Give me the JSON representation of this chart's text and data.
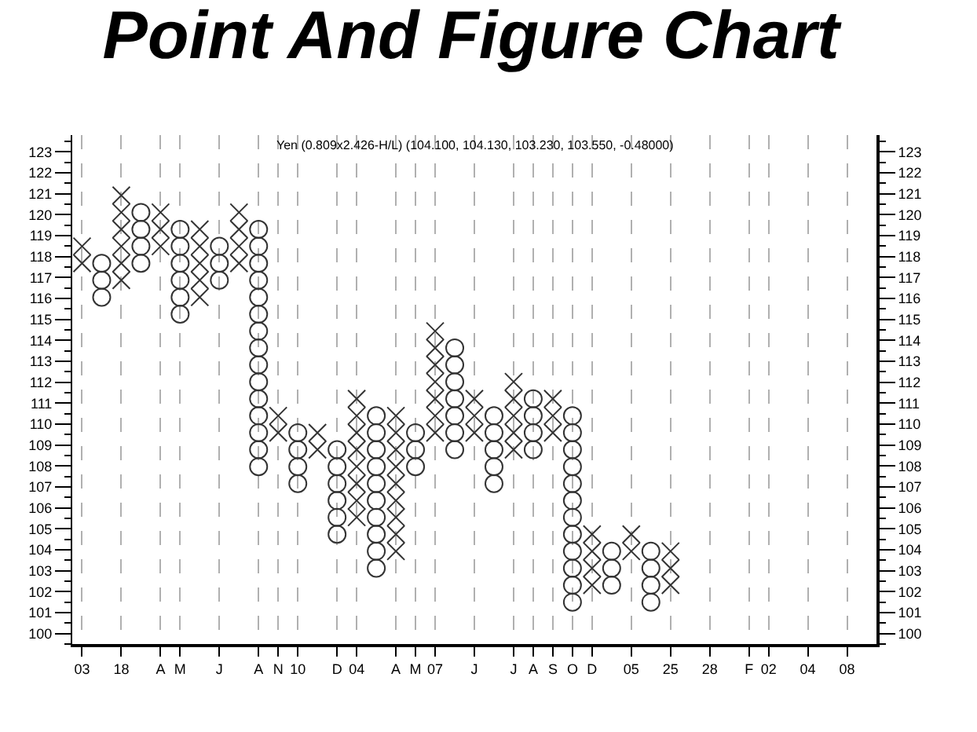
{
  "chart_data": {
    "type": "scatter",
    "title": "Point And Figure Chart",
    "annotations": [
      "Yen (0.809x2.426-H/L) (104.100, 104.130, 103.230, 103.550, -0.48000)"
    ],
    "categories": [
      "03",
      null,
      "18",
      null,
      "A",
      "M",
      null,
      "J",
      null,
      "A",
      "N",
      "10",
      null,
      "D",
      "04",
      null,
      "A",
      "M",
      "07",
      null,
      "J",
      null,
      "J",
      "A",
      "S",
      "O",
      "D",
      null,
      "05",
      null,
      "25",
      null,
      "28",
      null,
      "F",
      "02",
      null,
      "04",
      null,
      "08",
      null
    ],
    "series": [
      {
        "marker": "cross",
        "color": "#333333",
        "values": [
          117.68,
          null,
          116.87,
          null,
          118.49,
          null,
          116.06,
          null,
          117.68,
          null,
          109.59,
          null,
          108.78,
          null,
          105.55,
          null,
          103.93,
          null,
          109.59,
          null,
          109.59,
          null,
          108.78,
          null,
          109.59,
          null,
          102.31,
          null,
          103.93,
          null,
          102.31,
          null,
          null,
          null,
          null,
          null,
          null,
          null,
          null,
          null,
          null
        ]
      },
      {
        "marker": "cross",
        "color": "#333333",
        "values": [
          118.49,
          null,
          117.68,
          null,
          119.3,
          null,
          116.87,
          null,
          118.49,
          null,
          110.4,
          null,
          109.59,
          null,
          106.35,
          null,
          104.74,
          null,
          110.4,
          null,
          110.4,
          null,
          109.59,
          null,
          110.4,
          null,
          103.12,
          null,
          104.74,
          null,
          103.12,
          null,
          null,
          null,
          null,
          null,
          null,
          null,
          null,
          null,
          null
        ]
      },
      {
        "marker": "cross",
        "color": "#333333",
        "values": [
          null,
          null,
          118.49,
          null,
          120.11,
          null,
          117.68,
          null,
          119.3,
          null,
          null,
          null,
          null,
          null,
          107.16,
          null,
          105.55,
          null,
          111.21,
          null,
          111.21,
          null,
          110.4,
          null,
          111.21,
          null,
          103.93,
          null,
          null,
          null,
          103.93,
          null,
          null,
          null,
          null,
          null,
          null,
          null,
          null,
          null,
          null
        ]
      },
      {
        "marker": "cross",
        "color": "#333333",
        "values": [
          null,
          null,
          119.3,
          null,
          null,
          null,
          118.49,
          null,
          120.11,
          null,
          null,
          null,
          null,
          null,
          107.97,
          null,
          106.35,
          null,
          112.02,
          null,
          null,
          null,
          111.21,
          null,
          null,
          null,
          104.74,
          null,
          null,
          null,
          null,
          null,
          null,
          null,
          null,
          null,
          null,
          null,
          null,
          null,
          null
        ]
      },
      {
        "marker": "cross",
        "color": "#333333",
        "values": [
          null,
          null,
          120.11,
          null,
          null,
          null,
          119.3,
          null,
          null,
          null,
          null,
          null,
          null,
          null,
          108.78,
          null,
          107.16,
          null,
          112.83,
          null,
          null,
          null,
          112.02,
          null,
          null,
          null,
          null,
          null,
          null,
          null,
          null,
          null,
          null,
          null,
          null,
          null,
          null,
          null,
          null,
          null,
          null
        ]
      },
      {
        "marker": "cross",
        "color": "#333333",
        "values": [
          null,
          null,
          120.92,
          null,
          null,
          null,
          null,
          null,
          null,
          null,
          null,
          null,
          null,
          null,
          109.59,
          null,
          107.97,
          null,
          113.64,
          null,
          null,
          null,
          null,
          null,
          null,
          null,
          null,
          null,
          null,
          null,
          null,
          null,
          null,
          null,
          null,
          null,
          null,
          null,
          null,
          null,
          null
        ]
      },
      {
        "marker": "cross",
        "color": "#333333",
        "values": [
          null,
          null,
          null,
          null,
          null,
          null,
          null,
          null,
          null,
          null,
          null,
          null,
          null,
          null,
          110.4,
          null,
          108.78,
          null,
          114.44,
          null,
          null,
          null,
          null,
          null,
          null,
          null,
          null,
          null,
          null,
          null,
          null,
          null,
          null,
          null,
          null,
          null,
          null,
          null,
          null,
          null,
          null
        ]
      },
      {
        "marker": "cross",
        "color": "#333333",
        "values": [
          null,
          null,
          null,
          null,
          null,
          null,
          null,
          null,
          null,
          null,
          null,
          null,
          null,
          null,
          111.21,
          null,
          109.59,
          null,
          null,
          null,
          null,
          null,
          null,
          null,
          null,
          null,
          null,
          null,
          null,
          null,
          null,
          null,
          null,
          null,
          null,
          null,
          null,
          null,
          null,
          null,
          null
        ]
      },
      {
        "marker": "cross",
        "color": "#333333",
        "values": [
          null,
          null,
          null,
          null,
          null,
          null,
          null,
          null,
          null,
          null,
          null,
          null,
          null,
          null,
          null,
          null,
          110.4,
          null,
          null,
          null,
          null,
          null,
          null,
          null,
          null,
          null,
          null,
          null,
          null,
          null,
          null,
          null,
          null,
          null,
          null,
          null,
          null,
          null,
          null,
          null,
          null
        ]
      },
      {
        "marker": "circle",
        "color": "#333333",
        "values": [
          null,
          116.06,
          null,
          117.68,
          null,
          115.25,
          null,
          116.87,
          null,
          107.97,
          null,
          107.16,
          null,
          104.74,
          null,
          103.12,
          null,
          107.97,
          null,
          108.78,
          null,
          107.16,
          null,
          108.78,
          null,
          101.5,
          null,
          102.31,
          null,
          101.5,
          null,
          null,
          null,
          null,
          null,
          null,
          null,
          null,
          null,
          null,
          null
        ]
      },
      {
        "marker": "circle",
        "color": "#333333",
        "values": [
          null,
          116.87,
          null,
          118.49,
          null,
          116.06,
          null,
          117.68,
          null,
          108.78,
          null,
          107.97,
          null,
          105.55,
          null,
          103.93,
          null,
          108.78,
          null,
          109.59,
          null,
          107.97,
          null,
          109.59,
          null,
          102.31,
          null,
          103.12,
          null,
          102.31,
          null,
          null,
          null,
          null,
          null,
          null,
          null,
          null,
          null,
          null,
          null
        ]
      },
      {
        "marker": "circle",
        "color": "#333333",
        "values": [
          null,
          117.68,
          null,
          119.3,
          null,
          116.87,
          null,
          118.49,
          null,
          109.59,
          null,
          108.78,
          null,
          106.35,
          null,
          104.74,
          null,
          109.59,
          null,
          110.4,
          null,
          108.78,
          null,
          110.4,
          null,
          103.12,
          null,
          103.93,
          null,
          103.12,
          null,
          null,
          null,
          null,
          null,
          null,
          null,
          null,
          null,
          null,
          null
        ]
      },
      {
        "marker": "circle",
        "color": "#333333",
        "values": [
          null,
          null,
          null,
          120.11,
          null,
          117.68,
          null,
          null,
          null,
          110.4,
          null,
          109.59,
          null,
          107.16,
          null,
          105.55,
          null,
          null,
          null,
          111.21,
          null,
          109.59,
          null,
          111.21,
          null,
          103.93,
          null,
          null,
          null,
          103.93,
          null,
          null,
          null,
          null,
          null,
          null,
          null,
          null,
          null,
          null,
          null
        ]
      },
      {
        "marker": "circle",
        "color": "#333333",
        "values": [
          null,
          null,
          null,
          null,
          null,
          118.49,
          null,
          null,
          null,
          111.21,
          null,
          null,
          null,
          107.97,
          null,
          106.35,
          null,
          null,
          null,
          112.02,
          null,
          110.4,
          null,
          null,
          null,
          104.74,
          null,
          null,
          null,
          null,
          null,
          null,
          null,
          null,
          null,
          null,
          null,
          null,
          null,
          null,
          null
        ]
      },
      {
        "marker": "circle",
        "color": "#333333",
        "values": [
          null,
          null,
          null,
          null,
          null,
          119.3,
          null,
          null,
          null,
          112.02,
          null,
          null,
          null,
          108.78,
          null,
          107.16,
          null,
          null,
          null,
          112.83,
          null,
          null,
          null,
          null,
          null,
          105.55,
          null,
          null,
          null,
          null,
          null,
          null,
          null,
          null,
          null,
          null,
          null,
          null,
          null,
          null,
          null
        ]
      },
      {
        "marker": "circle",
        "color": "#333333",
        "values": [
          null,
          null,
          null,
          null,
          null,
          null,
          null,
          null,
          null,
          112.83,
          null,
          null,
          null,
          null,
          null,
          107.97,
          null,
          null,
          null,
          113.64,
          null,
          null,
          null,
          null,
          null,
          106.35,
          null,
          null,
          null,
          null,
          null,
          null,
          null,
          null,
          null,
          null,
          null,
          null,
          null,
          null,
          null
        ]
      },
      {
        "marker": "circle",
        "color": "#333333",
        "values": [
          null,
          null,
          null,
          null,
          null,
          null,
          null,
          null,
          null,
          113.64,
          null,
          null,
          null,
          null,
          null,
          108.78,
          null,
          null,
          null,
          null,
          null,
          null,
          null,
          null,
          null,
          107.16,
          null,
          null,
          null,
          null,
          null,
          null,
          null,
          null,
          null,
          null,
          null,
          null,
          null,
          null,
          null
        ]
      },
      {
        "marker": "circle",
        "color": "#333333",
        "values": [
          null,
          null,
          null,
          null,
          null,
          null,
          null,
          null,
          null,
          114.44,
          null,
          null,
          null,
          null,
          null,
          109.59,
          null,
          null,
          null,
          null,
          null,
          null,
          null,
          null,
          null,
          107.97,
          null,
          null,
          null,
          null,
          null,
          null,
          null,
          null,
          null,
          null,
          null,
          null,
          null,
          null,
          null
        ]
      },
      {
        "marker": "circle",
        "color": "#333333",
        "values": [
          null,
          null,
          null,
          null,
          null,
          null,
          null,
          null,
          null,
          115.25,
          null,
          null,
          null,
          null,
          null,
          110.4,
          null,
          null,
          null,
          null,
          null,
          null,
          null,
          null,
          null,
          108.78,
          null,
          null,
          null,
          null,
          null,
          null,
          null,
          null,
          null,
          null,
          null,
          null,
          null,
          null,
          null
        ]
      },
      {
        "marker": "circle",
        "color": "#333333",
        "values": [
          null,
          null,
          null,
          null,
          null,
          null,
          null,
          null,
          null,
          116.06,
          null,
          null,
          null,
          null,
          null,
          null,
          null,
          null,
          null,
          null,
          null,
          null,
          null,
          null,
          null,
          109.59,
          null,
          null,
          null,
          null,
          null,
          null,
          null,
          null,
          null,
          null,
          null,
          null,
          null,
          null,
          null
        ]
      },
      {
        "marker": "circle",
        "color": "#333333",
        "values": [
          null,
          null,
          null,
          null,
          null,
          null,
          null,
          null,
          null,
          116.87,
          null,
          null,
          null,
          null,
          null,
          null,
          null,
          null,
          null,
          null,
          null,
          null,
          null,
          null,
          null,
          110.4,
          null,
          null,
          null,
          null,
          null,
          null,
          null,
          null,
          null,
          null,
          null,
          null,
          null,
          null,
          null
        ]
      },
      {
        "marker": "circle",
        "color": "#333333",
        "values": [
          null,
          null,
          null,
          null,
          null,
          null,
          null,
          null,
          null,
          117.68,
          null,
          null,
          null,
          null,
          null,
          null,
          null,
          null,
          null,
          null,
          null,
          null,
          null,
          null,
          null,
          null,
          null,
          null,
          null,
          null,
          null,
          null,
          null,
          null,
          null,
          null,
          null,
          null,
          null,
          null,
          null
        ]
      },
      {
        "marker": "circle",
        "color": "#333333",
        "values": [
          null,
          null,
          null,
          null,
          null,
          null,
          null,
          null,
          null,
          118.49,
          null,
          null,
          null,
          null,
          null,
          null,
          null,
          null,
          null,
          null,
          null,
          null,
          null,
          null,
          null,
          null,
          null,
          null,
          null,
          null,
          null,
          null,
          null,
          null,
          null,
          null,
          null,
          null,
          null,
          null,
          null
        ]
      },
      {
        "marker": "circle",
        "color": "#333333",
        "values": [
          null,
          null,
          null,
          null,
          null,
          null,
          null,
          null,
          null,
          119.3,
          null,
          null,
          null,
          null,
          null,
          null,
          null,
          null,
          null,
          null,
          null,
          null,
          null,
          null,
          null,
          null,
          null,
          null,
          null,
          null,
          null,
          null,
          null,
          null,
          null,
          null,
          null,
          null,
          null,
          null,
          null
        ]
      }
    ],
    "ylim": [
      99.5,
      123.8
    ],
    "yticks": [
      100,
      101,
      102,
      103,
      104,
      105,
      106,
      107,
      108,
      109,
      110,
      111,
      112,
      113,
      114,
      115,
      116,
      117,
      118,
      119,
      120,
      121,
      122,
      123
    ],
    "y2lim": [
      99.5,
      123.8
    ],
    "y2ticks": [
      100,
      101,
      102,
      103,
      104,
      105,
      106,
      107,
      108,
      109,
      110,
      111,
      112,
      113,
      114,
      115,
      116,
      117,
      118,
      119,
      120,
      121,
      122,
      123
    ],
    "grid": "x"
  }
}
